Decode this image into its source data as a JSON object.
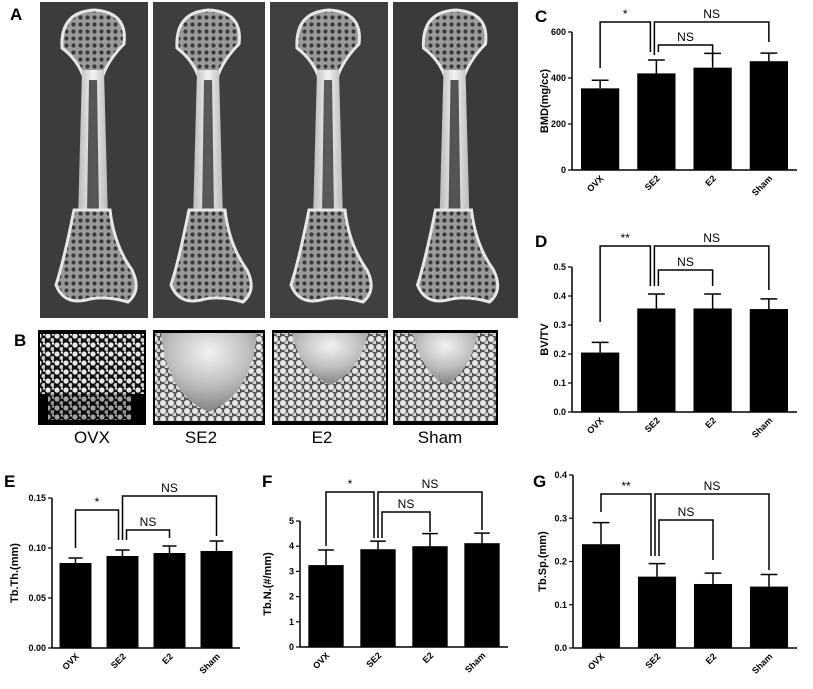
{
  "figure": {
    "panel_letters": [
      "A",
      "B",
      "C",
      "D",
      "E",
      "F",
      "G"
    ],
    "group_labels": [
      "OVX",
      "SE2",
      "E2",
      "Sham"
    ]
  },
  "chart_data": [
    {
      "panel": "C",
      "type": "bar",
      "categories": [
        "OVX",
        "SE2",
        "E2",
        "Sham"
      ],
      "values": [
        355,
        420,
        445,
        473
      ],
      "errors": [
        35,
        58,
        62,
        35
      ],
      "ylabel": "BMD(mg/cc)",
      "ylim": [
        0,
        600
      ],
      "yticks": [
        "0",
        "200",
        "400",
        "600"
      ],
      "significance": [
        {
          "from": "OVX",
          "to": "SE2",
          "label": "*"
        },
        {
          "from": "SE2",
          "to": "E2",
          "label": "NS"
        },
        {
          "from": "SE2",
          "to": "Sham",
          "label": "NS"
        }
      ]
    },
    {
      "panel": "D",
      "type": "bar",
      "categories": [
        "OVX",
        "SE2",
        "E2",
        "Sham"
      ],
      "values": [
        0.205,
        0.357,
        0.357,
        0.355
      ],
      "errors": [
        0.035,
        0.05,
        0.05,
        0.035
      ],
      "ylabel": "BV/TV",
      "ylim": [
        0,
        0.5
      ],
      "yticks": [
        "0.0",
        "0.1",
        "0.2",
        "0.3",
        "0.4",
        "0.5"
      ],
      "significance": [
        {
          "from": "OVX",
          "to": "SE2",
          "label": "**"
        },
        {
          "from": "SE2",
          "to": "E2",
          "label": "NS"
        },
        {
          "from": "SE2",
          "to": "Sham",
          "label": "NS"
        }
      ]
    },
    {
      "panel": "E",
      "type": "bar",
      "categories": [
        "OVX",
        "SE2",
        "E2",
        "Sham"
      ],
      "values": [
        0.085,
        0.092,
        0.095,
        0.097
      ],
      "errors": [
        0.005,
        0.006,
        0.007,
        0.01
      ],
      "ylabel": "Tb.Th.(mm)",
      "ylim": [
        0,
        0.15
      ],
      "yticks": [
        "0.00",
        "0.05",
        "0.10",
        "0.15"
      ],
      "significance": [
        {
          "from": "OVX",
          "to": "SE2",
          "label": "*"
        },
        {
          "from": "SE2",
          "to": "E2",
          "label": "NS"
        },
        {
          "from": "SE2",
          "to": "Sham",
          "label": "NS"
        }
      ]
    },
    {
      "panel": "F",
      "type": "bar",
      "categories": [
        "OVX",
        "SE2",
        "E2",
        "Sham"
      ],
      "values": [
        3.25,
        3.88,
        4.0,
        4.12
      ],
      "errors": [
        0.6,
        0.32,
        0.5,
        0.4
      ],
      "ylabel": "Tb.N.(#/mm)",
      "ylim": [
        0,
        5
      ],
      "yticks": [
        "0",
        "1",
        "2",
        "3",
        "4",
        "5"
      ],
      "significance": [
        {
          "from": "OVX",
          "to": "SE2",
          "label": "*"
        },
        {
          "from": "SE2",
          "to": "E2",
          "label": "NS"
        },
        {
          "from": "SE2",
          "to": "Sham",
          "label": "NS"
        }
      ]
    },
    {
      "panel": "G",
      "type": "bar",
      "categories": [
        "OVX",
        "SE2",
        "E2",
        "Sham"
      ],
      "values": [
        0.24,
        0.165,
        0.148,
        0.142
      ],
      "errors": [
        0.05,
        0.03,
        0.025,
        0.028
      ],
      "ylabel": "Tb.Sp.(mm)",
      "ylim": [
        0,
        0.4
      ],
      "yticks": [
        "0.0",
        "0.1",
        "0.2",
        "0.3",
        "0.4"
      ],
      "significance": [
        {
          "from": "OVX",
          "to": "SE2",
          "label": "**"
        },
        {
          "from": "SE2",
          "to": "E2",
          "label": "NS"
        },
        {
          "from": "SE2",
          "to": "Sham",
          "label": "NS"
        }
      ]
    }
  ]
}
